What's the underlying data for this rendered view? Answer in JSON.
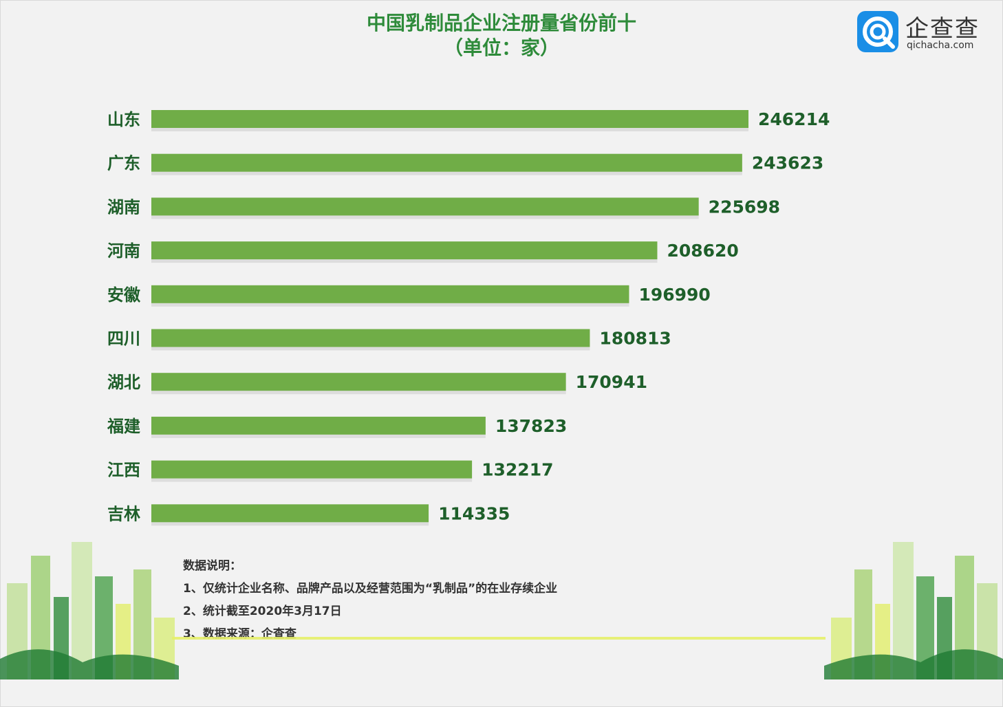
{
  "title": "中国乳制品企业注册量省份前十",
  "subtitle": "（单位：家）",
  "logo": {
    "name": "企查查",
    "domain": "qichacha.com",
    "colors": {
      "mark": "#1a8ee6"
    }
  },
  "colors": {
    "bar": "#70ad47",
    "label": "#1e5f2a",
    "title": "#2e8b3a"
  },
  "chart_data": {
    "type": "bar",
    "orientation": "horizontal",
    "categories": [
      "山东",
      "广东",
      "湖南",
      "河南",
      "安徽",
      "四川",
      "湖北",
      "福建",
      "江西",
      "吉林"
    ],
    "values": [
      246214,
      243623,
      225698,
      208620,
      196990,
      180813,
      170941,
      137823,
      132217,
      114335
    ],
    "title": "中国乳制品企业注册量省份前十",
    "subtitle": "（单位：家）",
    "xlabel": "",
    "ylabel": "",
    "grid": false,
    "legend": "none"
  },
  "notes": {
    "heading": "数据说明：",
    "items": [
      "1、仅统计企业名称、品牌产品以及经营范围为“乳制品”的在业存续企业",
      "2、统计截至2020年3月17日",
      "3、数据来源：企查查"
    ]
  }
}
